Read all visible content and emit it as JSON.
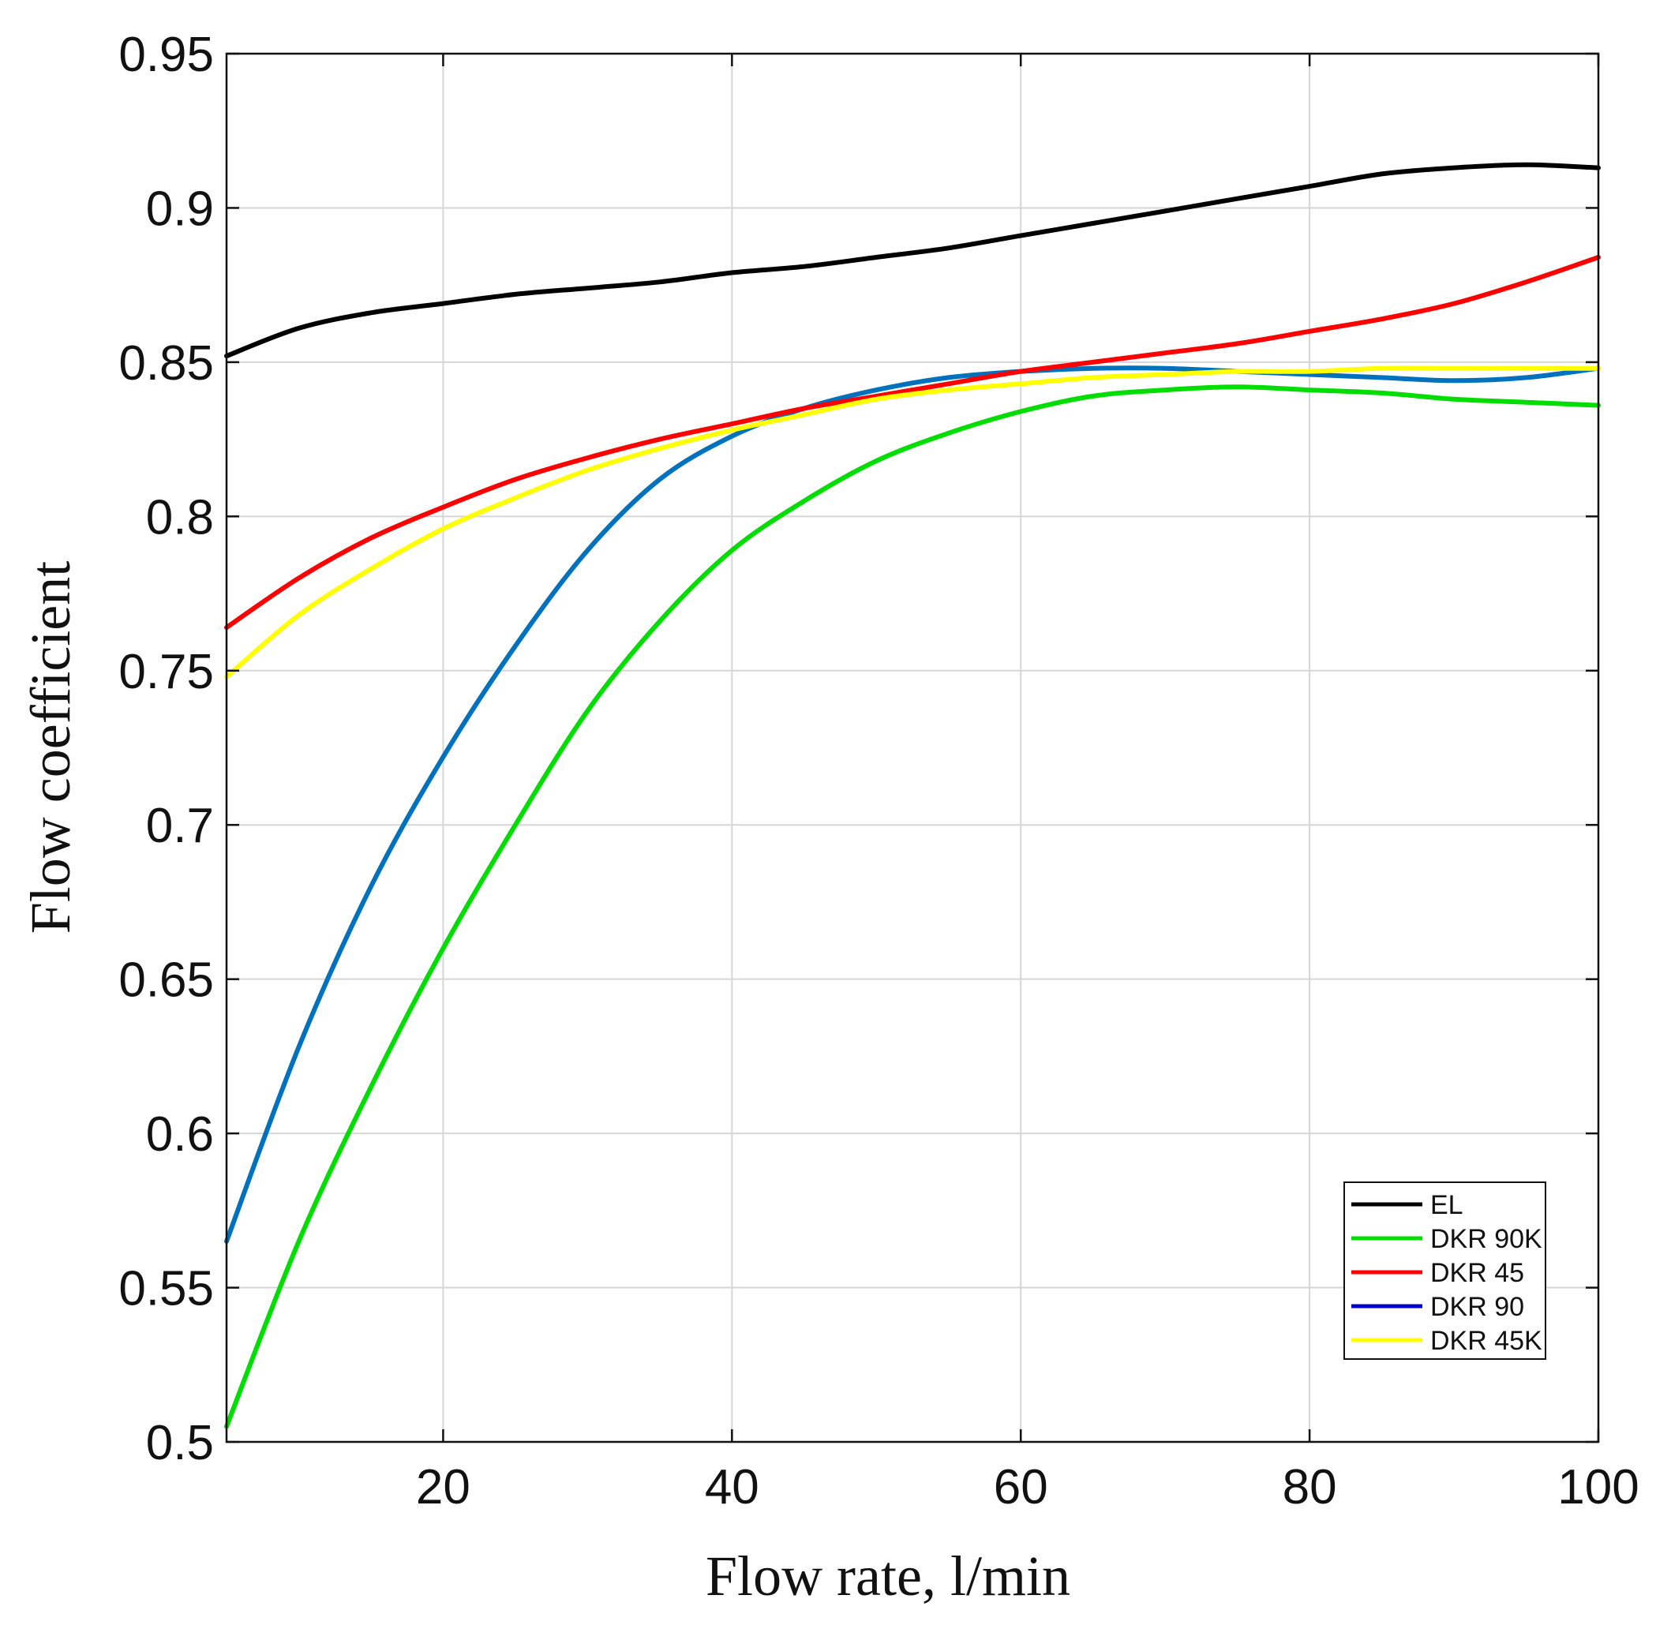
{
  "chart_data": {
    "type": "line",
    "title": "",
    "xlabel": "Flow rate, l/min",
    "ylabel": "Flow coefficient",
    "xlim": [
      5,
      100
    ],
    "ylim": [
      0.5,
      0.95
    ],
    "xticks": [
      20,
      40,
      60,
      80,
      100
    ],
    "xtick_labels": [
      "20",
      "40",
      "60",
      "80",
      "100"
    ],
    "yticks": [
      0.5,
      0.55,
      0.6,
      0.65,
      0.7,
      0.75,
      0.8,
      0.85,
      0.9,
      0.95
    ],
    "ytick_labels": [
      "0.5",
      "0.55",
      "0.6",
      "0.65",
      "0.7",
      "0.75",
      "0.8",
      "0.85",
      "0.9",
      "0.95"
    ],
    "grid": true,
    "legend_position": "bottom-right",
    "x": [
      5,
      10,
      15,
      20,
      25,
      30,
      35,
      40,
      45,
      50,
      55,
      60,
      65,
      70,
      75,
      80,
      85,
      90,
      95,
      100
    ],
    "series": [
      {
        "name": "EL",
        "color": "#000000",
        "values": [
          0.852,
          0.861,
          0.866,
          0.869,
          0.872,
          0.874,
          0.876,
          0.879,
          0.881,
          0.884,
          0.887,
          0.891,
          0.895,
          0.899,
          0.903,
          0.907,
          0.911,
          0.913,
          0.914,
          0.913
        ]
      },
      {
        "name": "DKR 90K",
        "color": "#00dd00",
        "values": [
          0.505,
          0.565,
          0.615,
          0.66,
          0.7,
          0.737,
          0.766,
          0.789,
          0.805,
          0.818,
          0.827,
          0.834,
          0.839,
          0.841,
          0.842,
          0.841,
          0.84,
          0.838,
          0.837,
          0.836
        ]
      },
      {
        "name": "DKR 45",
        "color": "#ff0000",
        "values": [
          0.764,
          0.78,
          0.793,
          0.803,
          0.812,
          0.819,
          0.825,
          0.83,
          0.835,
          0.839,
          0.843,
          0.847,
          0.85,
          0.853,
          0.856,
          0.86,
          0.864,
          0.869,
          0.876,
          0.884
        ]
      },
      {
        "name": "DKR 90",
        "color": "#0000cc",
        "line_color": "#0072bd",
        "values": [
          0.565,
          0.628,
          0.68,
          0.722,
          0.758,
          0.789,
          0.812,
          0.826,
          0.835,
          0.841,
          0.845,
          0.847,
          0.848,
          0.848,
          0.847,
          0.846,
          0.845,
          0.844,
          0.845,
          0.848
        ]
      },
      {
        "name": "DKR 45K",
        "color": "#ffff00",
        "values": [
          0.748,
          0.768,
          0.783,
          0.796,
          0.806,
          0.815,
          0.822,
          0.828,
          0.833,
          0.838,
          0.841,
          0.843,
          0.845,
          0.846,
          0.847,
          0.847,
          0.848,
          0.848,
          0.848,
          0.848
        ]
      }
    ]
  }
}
